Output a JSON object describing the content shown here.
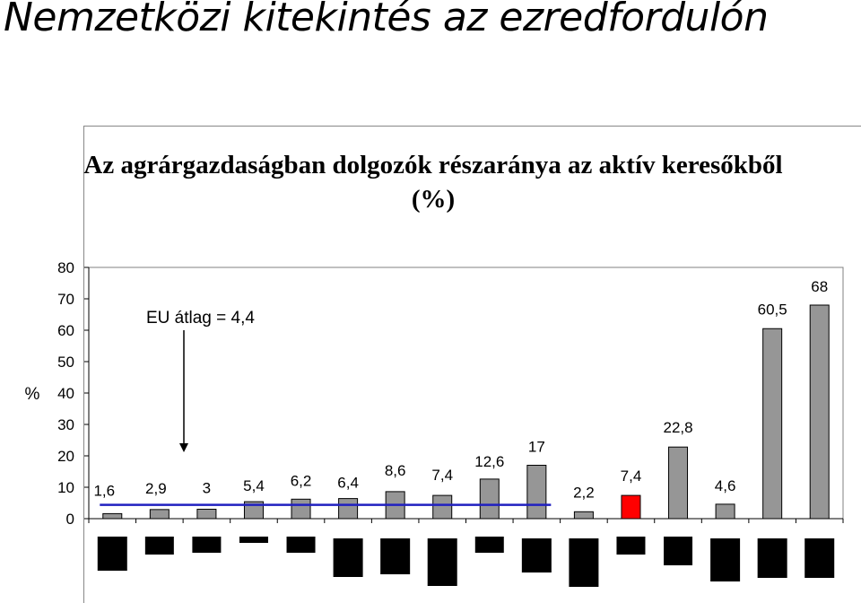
{
  "slide": {
    "title": "Nemzetközi kitekintés az ezredfordulón"
  },
  "chart_data": {
    "type": "bar",
    "title": "Az agrárgazdaságban dolgozók részaránya az aktív keresőkből (%)",
    "ylabel": "%",
    "xlabel": "",
    "ylim": [
      0,
      80
    ],
    "yticks": [
      0,
      10,
      20,
      30,
      40,
      50,
      60,
      70,
      80
    ],
    "categories": [
      "",
      "",
      "",
      "",
      "",
      "",
      "",
      "",
      "",
      "",
      "",
      "",
      "",
      "",
      "",
      ""
    ],
    "values": [
      1.6,
      2.9,
      3,
      5.4,
      6.2,
      6.4,
      8.6,
      7.4,
      12.6,
      17,
      2.2,
      7.4,
      22.8,
      4.6,
      60.5,
      68
    ],
    "value_labels": [
      "1,6",
      "2,9",
      "3",
      "5,4",
      "6,2",
      "6,4",
      "8,6",
      "7,4",
      "12,6",
      "17",
      "2,2",
      "7,4",
      "22,8",
      "4,6",
      "60,5",
      "68"
    ],
    "highlight_index": 11,
    "bar_color": "#969696",
    "highlight_color": "#ff0000",
    "grid": false,
    "average_line": {
      "value": 4.4,
      "label": "EU átlag = 4,4",
      "color": "#2020c0",
      "from_index": 0,
      "to_index": 9
    }
  }
}
